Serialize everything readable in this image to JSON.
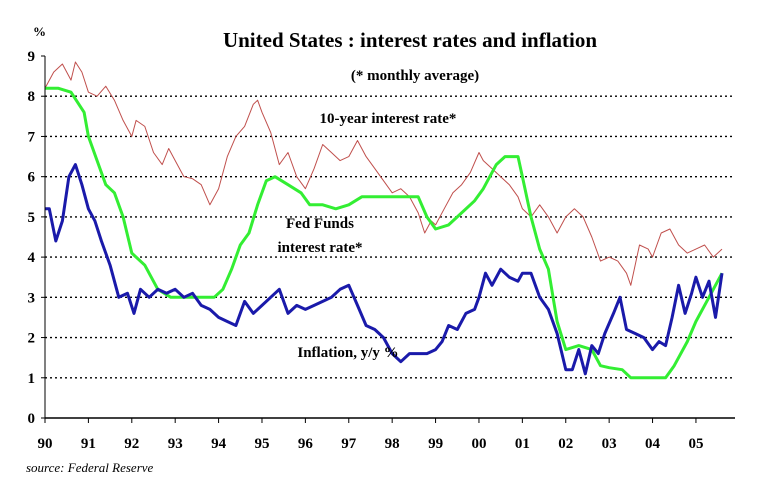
{
  "chart_data": {
    "type": "line",
    "title": "United States : interest rates and inflation",
    "ylabel": "%",
    "ylim": [
      0,
      9
    ],
    "xlim": [
      1990,
      2005.9
    ],
    "grid": "dotted horizontal",
    "y_ticks": [
      "0",
      "1",
      "2",
      "3",
      "4",
      "5",
      "6",
      "7",
      "8",
      "9"
    ],
    "x_ticks": [
      {
        "label": "90",
        "x": 1990
      },
      {
        "label": "91",
        "x": 1991
      },
      {
        "label": "92",
        "x": 1992
      },
      {
        "label": "93",
        "x": 1993
      },
      {
        "label": "94",
        "x": 1994
      },
      {
        "label": "95",
        "x": 1995
      },
      {
        "label": "96",
        "x": 1996
      },
      {
        "label": "97",
        "x": 1997
      },
      {
        "label": "98",
        "x": 1998
      },
      {
        "label": "99",
        "x": 1999
      },
      {
        "label": "00",
        "x": 2000
      },
      {
        "label": "01",
        "x": 2001
      },
      {
        "label": "02",
        "x": 2002
      },
      {
        "label": "03",
        "x": 2003
      },
      {
        "label": "04",
        "x": 2004
      },
      {
        "label": "05",
        "x": 2005
      }
    ],
    "annotations": {
      "monthly": "(* monthly average)",
      "ten_year": "10-year interest rate*",
      "fed_line1": "Fed Funds",
      "fed_line2": "interest rate*",
      "inflation": "Inflation, y/y %"
    },
    "source": "source: Federal Reserve",
    "series": [
      {
        "key": "ten_year",
        "color": "#c0504d",
        "x": [
          1990.0,
          1990.2,
          1990.4,
          1990.6,
          1990.7,
          1990.85,
          1991.0,
          1991.2,
          1991.4,
          1991.6,
          1991.8,
          1992.0,
          1992.1,
          1992.3,
          1992.5,
          1992.7,
          1992.85,
          1993.0,
          1993.2,
          1993.4,
          1993.6,
          1993.8,
          1994.0,
          1994.2,
          1994.4,
          1994.6,
          1994.8,
          1994.9,
          1995.0,
          1995.2,
          1995.4,
          1995.6,
          1995.8,
          1996.0,
          1996.2,
          1996.4,
          1996.6,
          1996.8,
          1997.0,
          1997.2,
          1997.4,
          1997.6,
          1997.8,
          1998.0,
          1998.2,
          1998.4,
          1998.6,
          1998.75,
          1998.9,
          1999.0,
          1999.2,
          1999.4,
          1999.6,
          1999.8,
          2000.0,
          2000.1,
          2000.3,
          2000.5,
          2000.7,
          2000.9,
          2001.0,
          2001.2,
          2001.4,
          2001.6,
          2001.8,
          2002.0,
          2002.2,
          2002.4,
          2002.6,
          2002.8,
          2003.0,
          2003.2,
          2003.4,
          2003.5,
          2003.7,
          2003.9,
          2004.0,
          2004.2,
          2004.4,
          2004.6,
          2004.8,
          2005.0,
          2005.2,
          2005.4,
          2005.6
        ],
        "values": [
          8.2,
          8.6,
          8.8,
          8.4,
          8.85,
          8.6,
          8.1,
          8.0,
          8.25,
          7.9,
          7.4,
          7.0,
          7.4,
          7.25,
          6.6,
          6.3,
          6.7,
          6.4,
          6.0,
          5.95,
          5.8,
          5.3,
          5.7,
          6.5,
          7.0,
          7.25,
          7.8,
          7.9,
          7.6,
          7.1,
          6.3,
          6.6,
          6.0,
          5.7,
          6.2,
          6.8,
          6.6,
          6.4,
          6.5,
          6.9,
          6.5,
          6.2,
          5.9,
          5.6,
          5.7,
          5.5,
          5.1,
          4.6,
          4.9,
          4.8,
          5.2,
          5.6,
          5.8,
          6.1,
          6.6,
          6.4,
          6.2,
          6.0,
          5.8,
          5.5,
          5.2,
          5.0,
          5.3,
          5.0,
          4.6,
          5.0,
          5.2,
          5.0,
          4.5,
          3.9,
          4.0,
          3.9,
          3.6,
          3.3,
          4.3,
          4.2,
          4.0,
          4.6,
          4.7,
          4.3,
          4.1,
          4.2,
          4.3,
          4.0,
          4.2
        ]
      },
      {
        "key": "fed_funds",
        "color": "#33ee33",
        "x": [
          1990.0,
          1990.3,
          1990.6,
          1990.9,
          1991.0,
          1991.2,
          1991.4,
          1991.6,
          1991.8,
          1992.0,
          1992.3,
          1992.6,
          1992.9,
          1993.2,
          1993.5,
          1993.9,
          1994.1,
          1994.3,
          1994.5,
          1994.7,
          1994.9,
          1995.1,
          1995.3,
          1995.6,
          1995.9,
          1996.1,
          1996.4,
          1996.7,
          1997.0,
          1997.3,
          1997.5,
          1997.8,
          1998.0,
          1998.3,
          1998.6,
          1998.8,
          1999.0,
          1999.3,
          1999.6,
          1999.9,
          2000.1,
          2000.4,
          2000.6,
          2000.9,
          2001.0,
          2001.2,
          2001.4,
          2001.6,
          2001.8,
          2002.0,
          2002.3,
          2002.6,
          2002.8,
          2003.0,
          2003.3,
          2003.5,
          2003.8,
          2004.0,
          2004.3,
          2004.5,
          2004.8,
          2005.0,
          2005.3,
          2005.6
        ],
        "values": [
          8.2,
          8.2,
          8.1,
          7.6,
          7.0,
          6.4,
          5.8,
          5.6,
          5.0,
          4.1,
          3.8,
          3.2,
          3.0,
          3.0,
          3.0,
          3.0,
          3.2,
          3.7,
          4.3,
          4.6,
          5.3,
          5.9,
          6.0,
          5.8,
          5.6,
          5.3,
          5.3,
          5.2,
          5.3,
          5.5,
          5.5,
          5.5,
          5.5,
          5.5,
          5.5,
          5.0,
          4.7,
          4.8,
          5.1,
          5.4,
          5.7,
          6.3,
          6.5,
          6.5,
          6.0,
          5.0,
          4.2,
          3.7,
          2.4,
          1.7,
          1.8,
          1.7,
          1.3,
          1.25,
          1.2,
          1.0,
          1.0,
          1.0,
          1.0,
          1.3,
          1.9,
          2.4,
          3.0,
          3.6
        ]
      },
      {
        "key": "inflation",
        "color": "#1a1aaa",
        "x": [
          1990.0,
          1990.1,
          1990.25,
          1990.4,
          1990.55,
          1990.7,
          1990.85,
          1991.0,
          1991.15,
          1991.3,
          1991.5,
          1991.7,
          1991.9,
          1992.05,
          1992.2,
          1992.4,
          1992.6,
          1992.8,
          1993.0,
          1993.2,
          1993.4,
          1993.6,
          1993.8,
          1994.0,
          1994.2,
          1994.4,
          1994.6,
          1994.8,
          1995.0,
          1995.2,
          1995.4,
          1995.6,
          1995.8,
          1996.0,
          1996.2,
          1996.4,
          1996.6,
          1996.8,
          1997.0,
          1997.2,
          1997.4,
          1997.6,
          1997.8,
          1998.0,
          1998.2,
          1998.4,
          1998.6,
          1998.8,
          1999.0,
          1999.15,
          1999.3,
          1999.5,
          1999.7,
          1999.9,
          2000.0,
          2000.15,
          2000.3,
          2000.5,
          2000.7,
          2000.9,
          2001.0,
          2001.2,
          2001.4,
          2001.6,
          2001.8,
          2002.0,
          2002.15,
          2002.3,
          2002.45,
          2002.6,
          2002.75,
          2002.9,
          2003.1,
          2003.25,
          2003.4,
          2003.6,
          2003.8,
          2004.0,
          2004.15,
          2004.3,
          2004.45,
          2004.6,
          2004.75,
          2004.9,
          2005.0,
          2005.15,
          2005.3,
          2005.45,
          2005.6
        ],
        "values": [
          5.2,
          5.2,
          4.4,
          4.9,
          6.0,
          6.3,
          5.8,
          5.2,
          4.9,
          4.4,
          3.8,
          3.0,
          3.1,
          2.6,
          3.2,
          3.0,
          3.2,
          3.1,
          3.2,
          3.0,
          3.1,
          2.8,
          2.7,
          2.5,
          2.4,
          2.3,
          2.9,
          2.6,
          2.8,
          3.0,
          3.2,
          2.6,
          2.8,
          2.7,
          2.8,
          2.9,
          3.0,
          3.2,
          3.3,
          2.8,
          2.3,
          2.2,
          2.0,
          1.6,
          1.4,
          1.6,
          1.6,
          1.6,
          1.7,
          1.9,
          2.3,
          2.2,
          2.6,
          2.7,
          3.0,
          3.6,
          3.3,
          3.7,
          3.5,
          3.4,
          3.6,
          3.6,
          3.0,
          2.7,
          2.1,
          1.2,
          1.2,
          1.7,
          1.1,
          1.8,
          1.6,
          2.1,
          2.6,
          3.0,
          2.2,
          2.1,
          2.0,
          1.7,
          1.9,
          1.8,
          2.5,
          3.3,
          2.6,
          3.1,
          3.5,
          3.0,
          3.4,
          2.5,
          3.6
        ]
      }
    ]
  }
}
